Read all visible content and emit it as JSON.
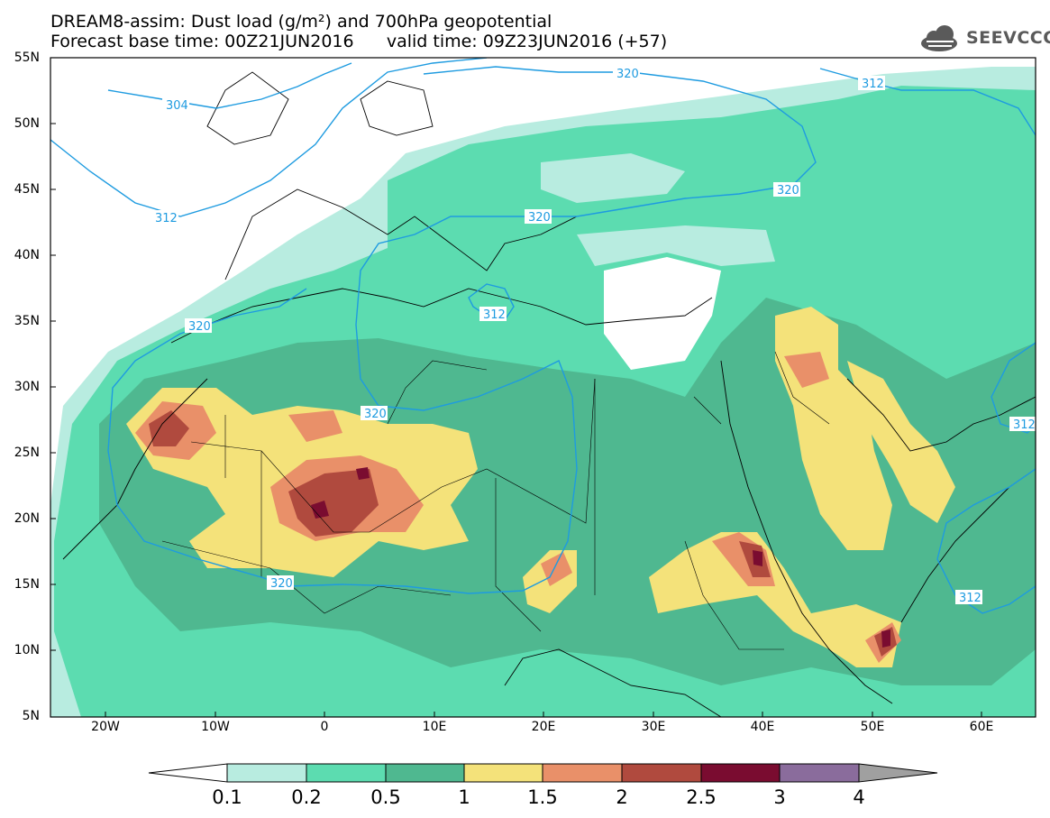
{
  "title_line1": "DREAM8-assim: Dust load (g/m²) and 700hPa geopotential",
  "title_line2": "Forecast base time: 00Z21JUN2016      valid time: 09Z23JUN2016 (+57)",
  "logo_text": "SEEVCCC",
  "logo_icon": "cloud-icon",
  "lat_labels": [
    "55N",
    "50N",
    "45N",
    "40N",
    "35N",
    "30N",
    "25N",
    "20N",
    "15N",
    "10N",
    "5N"
  ],
  "lon_labels": [
    "20W",
    "10W",
    "0",
    "10E",
    "20E",
    "30E",
    "40E",
    "50E",
    "60E"
  ],
  "contour_labels": [
    "304",
    "312",
    "320",
    "320",
    "320",
    "312",
    "320",
    "320",
    "320",
    "312",
    "312",
    "312"
  ],
  "colorbar": {
    "labels": [
      "0.1",
      "0.2",
      "0.5",
      "1",
      "1.5",
      "2",
      "2.5",
      "3",
      "4"
    ],
    "colors": [
      "#ffffff",
      "#b8ece0",
      "#5cdcb0",
      "#4fb890",
      "#f4e27a",
      "#e99069",
      "#b04a3e",
      "#7a0c30",
      "#8a6c9c",
      "#a0a0a0"
    ]
  },
  "dust_colors": {
    "c01": "#b8ece0",
    "c02": "#5cdcb0",
    "c05": "#4fb890",
    "c1": "#f4e27a",
    "c15": "#e99069",
    "c2": "#b04a3e",
    "c25": "#7a0c30",
    "contour": "#1e9be0"
  }
}
